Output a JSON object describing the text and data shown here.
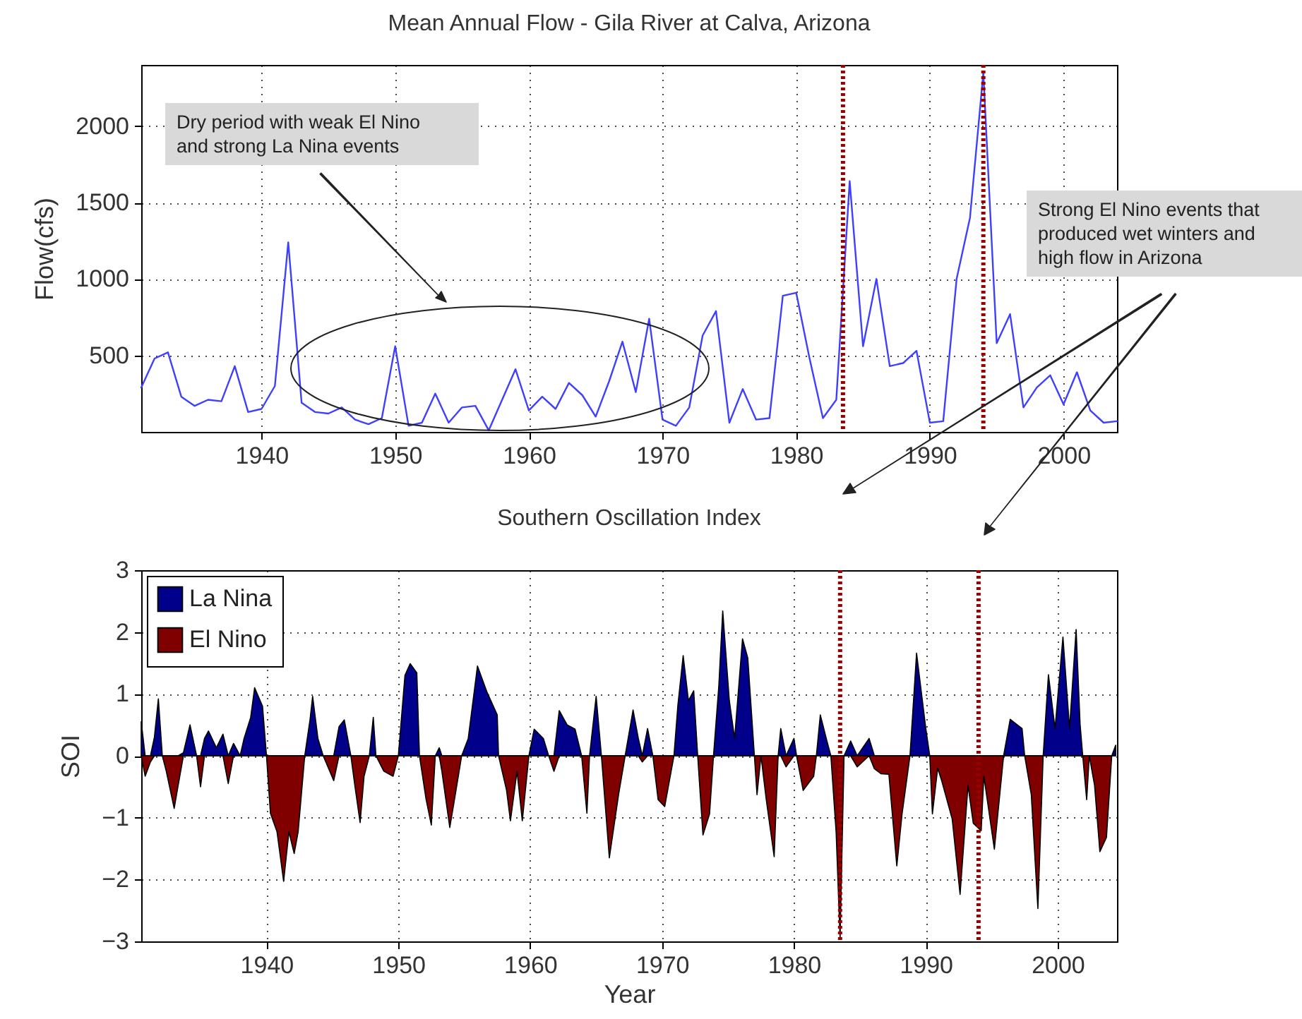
{
  "chart_data": [
    {
      "type": "line",
      "title": "Mean Annual Flow - Gila River at Calva, Arizona",
      "ylabel": "Flow(cfs)",
      "x": [
        1931,
        1932,
        1933,
        1934,
        1935,
        1936,
        1937,
        1938,
        1939,
        1940,
        1941,
        1942,
        1943,
        1944,
        1945,
        1946,
        1947,
        1948,
        1949,
        1950,
        1951,
        1952,
        1953,
        1954,
        1955,
        1956,
        1957,
        1958,
        1959,
        1960,
        1961,
        1962,
        1963,
        1964,
        1965,
        1966,
        1967,
        1968,
        1969,
        1970,
        1971,
        1972,
        1973,
        1974,
        1975,
        1976,
        1977,
        1978,
        1979,
        1980,
        1981,
        1982,
        1983,
        1984,
        1985,
        1986,
        1987,
        1988,
        1989,
        1990,
        1991,
        1992,
        1993,
        1994,
        1995,
        1996,
        1997,
        1998,
        1999,
        2000,
        2001,
        2002,
        2003,
        2004
      ],
      "series": [
        {
          "color": "#3f3fff",
          "values": [
            290,
            480,
            520,
            230,
            170,
            210,
            200,
            430,
            130,
            150,
            300,
            1240,
            190,
            130,
            120,
            160,
            80,
            50,
            90,
            560,
            40,
            60,
            250,
            60,
            160,
            170,
            10,
            210,
            410,
            140,
            230,
            150,
            320,
            240,
            100,
            330,
            590,
            260,
            740,
            80,
            40,
            160,
            630,
            790,
            60,
            280,
            80,
            90,
            890,
            910,
            480,
            90,
            210,
            1640,
            560,
            1000,
            430,
            450,
            530,
            60,
            70,
            1000,
            1400,
            2350,
            580,
            770,
            160,
            290,
            370,
            180,
            390,
            140,
            60,
            70
          ]
        }
      ],
      "xlim": [
        1931,
        2004
      ],
      "xticks": [
        1940,
        1950,
        1960,
        1970,
        1980,
        1990,
        2000
      ],
      "ylim": [
        0,
        2400
      ],
      "yticks": [
        500,
        1000,
        1500,
        2000
      ],
      "grid": true,
      "ref_lines": [
        {
          "axis": "x",
          "value": 1983.5,
          "color": "#990000",
          "line_style": "dotted"
        },
        {
          "axis": "x",
          "value": 1994,
          "color": "#990000",
          "line_style": "dotted"
        }
      ],
      "annotations": [
        "Dry period with weak El Nino and strong La Nina events",
        "Strong El Nino events that produced wet winters and high flow in Arizona"
      ]
    },
    {
      "type": "area",
      "title": "Southern Oscillation Index",
      "xlabel": "Year",
      "ylabel": "SOI",
      "x": [
        1930.5,
        1930.8,
        1931.2,
        1931.5,
        1931.8,
        1932.1,
        1932.4,
        1933.0,
        1933.3,
        1933.7,
        1934.2,
        1934.7,
        1935.0,
        1935.3,
        1935.6,
        1936.2,
        1936.7,
        1937.1,
        1937.5,
        1938.0,
        1938.3,
        1938.8,
        1939.1,
        1939.7,
        1940.0,
        1940.3,
        1940.8,
        1941.3,
        1941.7,
        1942.1,
        1942.4,
        1942.9,
        1943.3,
        1943.5,
        1943.9,
        1944.3,
        1944.8,
        1945.1,
        1945.5,
        1945.9,
        1946.4,
        1946.7,
        1947.1,
        1947.4,
        1947.8,
        1948.1,
        1948.3,
        1948.9,
        1949.6,
        1950.0,
        1950.5,
        1950.9,
        1951.4,
        1951.6,
        1952.1,
        1952.5,
        1952.8,
        1953.1,
        1953.3,
        1953.9,
        1954.2,
        1954.8,
        1955.3,
        1956.0,
        1956.7,
        1957.5,
        1957.6,
        1958.2,
        1958.5,
        1959.0,
        1959.4,
        1959.9,
        1960.3,
        1961.0,
        1961.4,
        1961.8,
        1962.2,
        1962.8,
        1963.4,
        1963.9,
        1964.3,
        1964.5,
        1965.0,
        1965.4,
        1966.0,
        1966.7,
        1967.2,
        1967.8,
        1968.2,
        1968.5,
        1968.9,
        1969.3,
        1969.7,
        1970.2,
        1970.9,
        1971.2,
        1971.6,
        1972.0,
        1972.4,
        1972.7,
        1973.1,
        1973.6,
        1973.9,
        1974.3,
        1974.6,
        1975.1,
        1975.5,
        1976.1,
        1976.5,
        1977.0,
        1977.2,
        1977.5,
        1977.9,
        1978.5,
        1978.8,
        1979.0,
        1979.4,
        1980.0,
        1980.2,
        1980.7,
        1981.5,
        1981.7,
        1982.0,
        1982.5,
        1982.8,
        1983.2,
        1983.5,
        1983.8,
        1984.3,
        1984.8,
        1985.7,
        1986.1,
        1986.6,
        1987.2,
        1987.8,
        1988.2,
        1988.8,
        1989.3,
        1990.0,
        1990.3,
        1990.5,
        1990.9,
        1991.2,
        1992.0,
        1992.6,
        1993.2,
        1993.6,
        1994.2,
        1994.4,
        1995.2,
        1995.9,
        1996.4,
        1997.3,
        1997.5,
        1998.0,
        1998.5,
        1998.9,
        1999.3,
        1999.8,
        2000.4,
        2000.9,
        2001.4,
        2001.7,
        2001.9,
        2002.2,
        2002.4,
        2002.8,
        2003.2,
        2003.7,
        2004.1,
        2004.4
      ],
      "series": [
        {
          "name": "La Nina",
          "color": "#00008b",
          "values": [
            0.55,
            0,
            0,
            0.3,
            0.92,
            0,
            0,
            0,
            0,
            0.05,
            0.5,
            0,
            0,
            0.28,
            0.4,
            0.13,
            0.35,
            0,
            0.2,
            0,
            0.28,
            0.62,
            1.1,
            0.8,
            0,
            0,
            0,
            0,
            0,
            0,
            0,
            0,
            0.58,
            0.96,
            0.28,
            0,
            0,
            0,
            0.47,
            0.58,
            0,
            0,
            0,
            0,
            0,
            0.62,
            0,
            0,
            0,
            0,
            1.3,
            1.49,
            1.34,
            0,
            0,
            0,
            0,
            0.13,
            0,
            0,
            0,
            0,
            0.28,
            1.45,
            1.04,
            0.66,
            0,
            0,
            0,
            0,
            0,
            0,
            0.43,
            0.28,
            0,
            0,
            0.73,
            0.5,
            0.43,
            0,
            0,
            0,
            0.96,
            0,
            0,
            0,
            0,
            0.74,
            0.28,
            0,
            0.44,
            0,
            0,
            0,
            0,
            0.82,
            1.62,
            0.89,
            1.05,
            0,
            0,
            0,
            0,
            1.12,
            2.34,
            0.89,
            0.28,
            1.89,
            1.58,
            0,
            0,
            0,
            0,
            0,
            0,
            0.44,
            0,
            0.28,
            0,
            0,
            0,
            0,
            0.66,
            0.24,
            0,
            0,
            0,
            0,
            0.24,
            0,
            0.28,
            0,
            0,
            0,
            0,
            0,
            0,
            1.66,
            0.44,
            0,
            0,
            0,
            0,
            0,
            0,
            0,
            0,
            0,
            0,
            0,
            0,
            0.59,
            0.44,
            0,
            0,
            0,
            0,
            1.31,
            0.44,
            1.92,
            0.44,
            2.04,
            0.51,
            0,
            0,
            0,
            0,
            0,
            0,
            0,
            0.17
          ]
        },
        {
          "name": "El Nino",
          "color": "#800000",
          "values": [
            0,
            -0.33,
            -0.1,
            0,
            0,
            0,
            -0.25,
            -0.85,
            -0.48,
            0,
            0,
            0,
            -0.5,
            0,
            0,
            0,
            0,
            -0.45,
            0,
            0,
            0,
            0,
            0,
            0,
            0,
            -0.93,
            -1.23,
            -2.03,
            -1.23,
            -1.58,
            -1.23,
            0,
            0,
            0,
            0,
            0,
            -0.25,
            -0.4,
            0,
            0,
            0,
            -0.48,
            -1.08,
            -0.33,
            0,
            0,
            0,
            -0.25,
            -0.33,
            0,
            0,
            0,
            0,
            0,
            -0.7,
            -1.12,
            0,
            0,
            -0.25,
            -1.16,
            -0.78,
            0,
            0,
            0,
            0,
            0,
            0,
            -0.55,
            -1.05,
            -0.25,
            -1.05,
            0,
            0,
            0,
            0,
            -0.25,
            0,
            0,
            0,
            0,
            -0.93,
            0,
            0,
            0,
            -1.65,
            -0.63,
            0,
            0,
            0,
            -0.1,
            0,
            0,
            -0.71,
            -0.82,
            0,
            0,
            0,
            0,
            0,
            0,
            -1.28,
            -0.94,
            0,
            0,
            0,
            0,
            0,
            0,
            0,
            0,
            -0.63,
            0,
            -0.71,
            -1.63,
            0,
            0,
            -0.18,
            0,
            0,
            -0.56,
            -0.33,
            0,
            0,
            0,
            0,
            -1.24,
            -2.95,
            0,
            0,
            -0.18,
            0,
            -0.21,
            -0.29,
            -0.3,
            -1.78,
            -0.94,
            0,
            0,
            0,
            0,
            -0.94,
            -0.2,
            -0.4,
            -1.02,
            -2.24,
            -0.48,
            -1.09,
            -1.21,
            -0.33,
            -1.51,
            0,
            0,
            0,
            0,
            -0.63,
            -2.47,
            0,
            0,
            0,
            0,
            0,
            0,
            0,
            0,
            -0.71,
            0,
            -0.48,
            -1.55,
            -1.32,
            0,
            0
          ]
        }
      ],
      "xlim": [
        1930.5,
        2004.5
      ],
      "xticks": [
        1940,
        1950,
        1960,
        1970,
        1980,
        1990,
        2000
      ],
      "ylim": [
        -3,
        3
      ],
      "yticks": [
        -3,
        -2,
        -1,
        0,
        1,
        2,
        3
      ],
      "grid": true,
      "legend": "top left",
      "ref_lines": [
        {
          "axis": "x",
          "value": 1983.5,
          "color": "#990000",
          "line_style": "dotted"
        },
        {
          "axis": "x",
          "value": 1994,
          "color": "#990000",
          "line_style": "dotted"
        }
      ]
    }
  ]
}
